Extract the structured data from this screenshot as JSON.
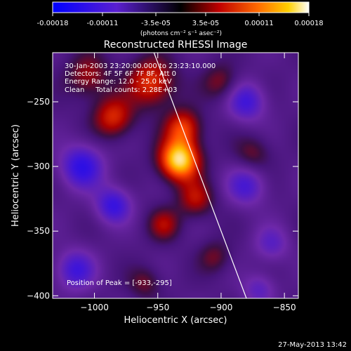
{
  "colorbar": {
    "tick_labels": [
      "-0.00018",
      "-0.00011",
      "-3.5e-05",
      "3.5e-05",
      "0.00011",
      "0.00018"
    ],
    "tick_values": [
      -0.00018,
      -0.00011,
      -3.5e-05,
      3.5e-05,
      0.00011,
      0.00018
    ],
    "range": [
      -0.00018,
      0.00018
    ],
    "unit_label": "(photons cm⁻² s⁻¹ asec⁻²)"
  },
  "chart_data": {
    "type": "heatmap",
    "title": "Reconstructed RHESSI Image",
    "xlabel": "Heliocentric X (arcsec)",
    "ylabel": "Heliocentric Y (arcsec)",
    "xlim": [
      -1033,
      -839
    ],
    "ylim": [
      -402,
      -212
    ],
    "x_ticks": [
      -1000,
      -950,
      -900,
      -850
    ],
    "x_tick_labels": [
      "−1000",
      "−950",
      "−900",
      "−850"
    ],
    "y_ticks": [
      -250,
      -300,
      -350,
      -400
    ],
    "y_tick_labels": [
      "−250",
      "−300",
      "−350",
      "−400"
    ],
    "limb_line": [
      [
        -953,
        -212
      ],
      [
        -880,
        -402
      ]
    ],
    "sources": [
      {
        "x": -933,
        "y": -295,
        "amp": 1.0,
        "sigma": 11
      },
      {
        "x": -930,
        "y": -270,
        "amp": 0.55,
        "sigma": 10
      },
      {
        "x": -955,
        "y": -235,
        "amp": 0.55,
        "sigma": 13
      },
      {
        "x": -985,
        "y": -262,
        "amp": 0.5,
        "sigma": 11
      },
      {
        "x": -1005,
        "y": -230,
        "amp": 0.35,
        "sigma": 12
      },
      {
        "x": -920,
        "y": -325,
        "amp": 0.4,
        "sigma": 10
      },
      {
        "x": -945,
        "y": -345,
        "amp": 0.35,
        "sigma": 9
      },
      {
        "x": -905,
        "y": -370,
        "amp": 0.25,
        "sigma": 9
      },
      {
        "x": -960,
        "y": -390,
        "amp": 0.25,
        "sigma": 9
      },
      {
        "x": -875,
        "y": -290,
        "amp": 0.25,
        "sigma": 10
      },
      {
        "x": -900,
        "y": -235,
        "amp": 0.3,
        "sigma": 10
      },
      {
        "x": -1010,
        "y": -300,
        "amp": -0.55,
        "sigma": 12
      },
      {
        "x": -985,
        "y": -330,
        "amp": -0.5,
        "sigma": 10
      },
      {
        "x": -1015,
        "y": -380,
        "amp": -0.45,
        "sigma": 11
      },
      {
        "x": -880,
        "y": -250,
        "amp": -0.45,
        "sigma": 11
      },
      {
        "x": -880,
        "y": -315,
        "amp": -0.4,
        "sigma": 11
      },
      {
        "x": -860,
        "y": -360,
        "amp": -0.3,
        "sigma": 10
      },
      {
        "x": -870,
        "y": -395,
        "amp": -0.3,
        "sigma": 9
      }
    ],
    "annotations": [
      "30-Jan-2003 23:20:00.000 to 23:23:10.000",
      "Detectors: 4F 5F 6F 7F 8F, Att 0",
      "Energy Range: 12.0 - 25.0 keV",
      "Clean     Total counts: 2.28E+03",
      "Position of Peak = [-933,-295]"
    ]
  },
  "footer_timestamp": "27-May-2013 13:42"
}
